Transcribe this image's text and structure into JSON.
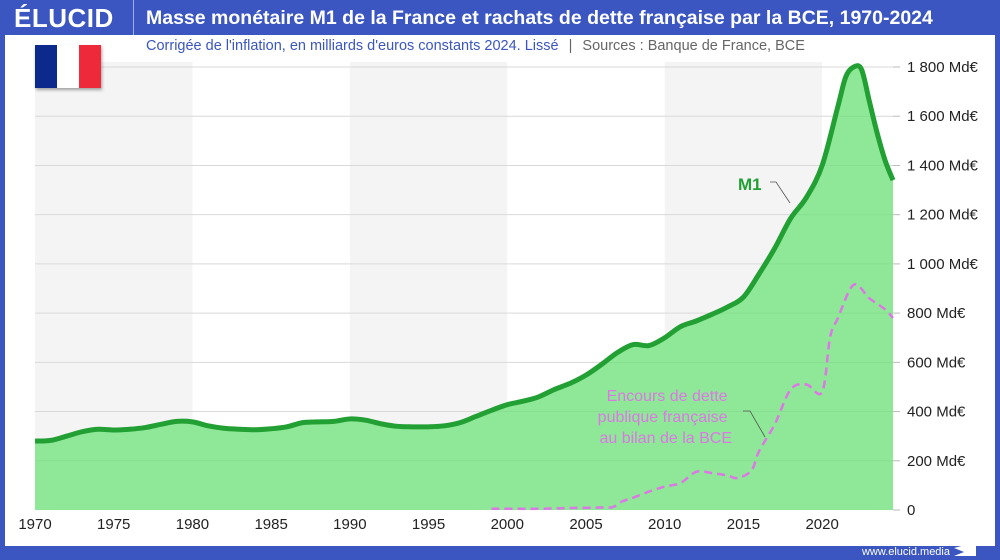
{
  "header": {
    "logo": "ÉLUCID",
    "title": "Masse monétaire M1 de la France et rachats de dette française par la BCE, 1970-2024",
    "subtitle": "Corrigée de l'inflation, en milliards d'euros constants 2024. Lissé",
    "separator": "|",
    "sources": "Sources : Banque de France, BCE"
  },
  "footer": {
    "url": "www.elucid.media"
  },
  "flag": {
    "name": "france-flag",
    "colors": [
      "#0c2a8c",
      "#ffffff",
      "#ee2a3a"
    ]
  },
  "colors": {
    "brand": "#3b56c0",
    "m1_line": "#22a034",
    "m1_fill": "#8ee897",
    "debt_line": "#dd77e6",
    "band": "#f4f4f4"
  },
  "chart_data": {
    "type": "area",
    "xlim": [
      1970,
      2024.5
    ],
    "ylim": [
      0,
      1800
    ],
    "grid": true,
    "x_ticks": [
      "1970",
      "1975",
      "1980",
      "1985",
      "1990",
      "1995",
      "2000",
      "2005",
      "2010",
      "2015",
      "2020"
    ],
    "y_ticks": [
      "0",
      "200 Md€",
      "400 Md€",
      "600 Md€",
      "800 Md€",
      "1 000 Md€",
      "1 200 Md€",
      "1 400 Md€",
      "1 600 Md€",
      "1 800 Md€"
    ],
    "y_tick_values": [
      0,
      200,
      400,
      600,
      800,
      1000,
      1200,
      1400,
      1600,
      1800
    ],
    "series": [
      {
        "name": "M1",
        "style": "solid-area",
        "x": [
          1970,
          1971,
          1972,
          1973,
          1974,
          1975,
          1976,
          1977,
          1978,
          1979,
          1980,
          1981,
          1982,
          1983,
          1984,
          1985,
          1986,
          1987,
          1988,
          1989,
          1990,
          1991,
          1992,
          1993,
          1994,
          1995,
          1996,
          1997,
          1998,
          1999,
          2000,
          2001,
          2002,
          2003,
          2004,
          2005,
          2006,
          2007,
          2008,
          2009,
          2010,
          2011,
          2012,
          2013,
          2014,
          2015,
          2016,
          2017,
          2018,
          2019,
          2020,
          2021,
          2021.5,
          2022,
          2022.5,
          2023,
          2023.5,
          2024,
          2024.5
        ],
        "values": [
          280,
          283,
          300,
          318,
          328,
          325,
          328,
          335,
          348,
          360,
          358,
          342,
          332,
          328,
          326,
          330,
          338,
          355,
          358,
          360,
          370,
          365,
          350,
          340,
          338,
          338,
          342,
          355,
          380,
          405,
          428,
          442,
          460,
          490,
          515,
          548,
          592,
          640,
          672,
          668,
          700,
          745,
          768,
          795,
          825,
          865,
          960,
          1065,
          1185,
          1270,
          1400,
          1640,
          1760,
          1800,
          1790,
          1660,
          1530,
          1420,
          1340
        ]
      },
      {
        "name": "Encours de dette publique française au bilan de la BCE",
        "style": "dashed",
        "x": [
          1999,
          2000,
          2002,
          2004,
          2006,
          2006.7,
          2007.3,
          2008,
          2009,
          2010,
          2011,
          2012,
          2013,
          2014,
          2014.6,
          2015.5,
          2016,
          2017,
          2018,
          2019,
          2020,
          2020.5,
          2021,
          2022,
          2023,
          2024,
          2024.5
        ],
        "values": [
          5,
          5,
          5,
          8,
          10,
          12,
          35,
          50,
          75,
          95,
          110,
          155,
          150,
          140,
          130,
          160,
          240,
          350,
          490,
          510,
          480,
          700,
          780,
          915,
          860,
          815,
          780
        ]
      }
    ]
  }
}
